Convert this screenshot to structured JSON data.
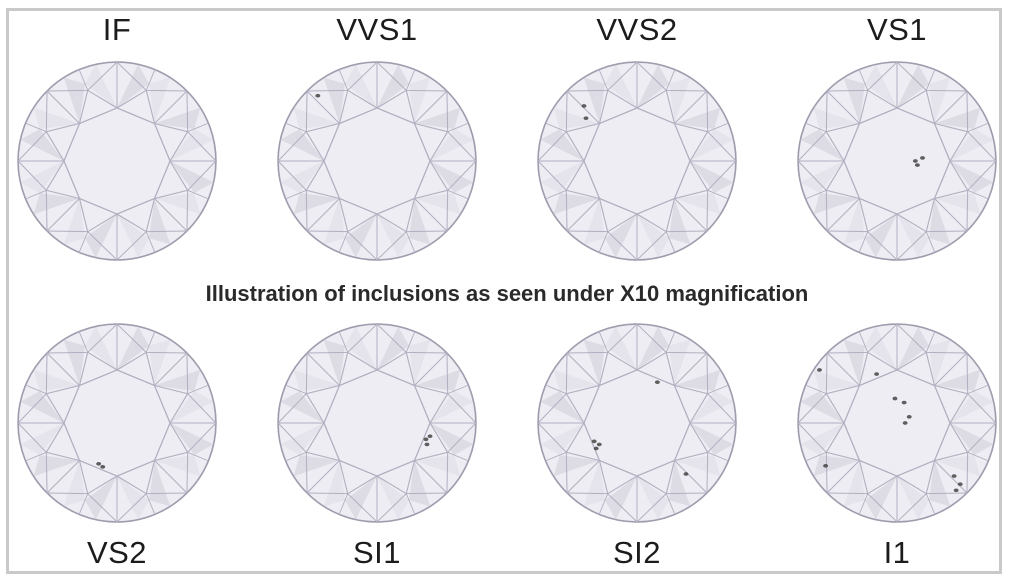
{
  "caption": "Illustration of inclusions as seen under X10 magnification",
  "colors": {
    "diamond_face": "#eeedf3",
    "diamond_outline": "#9f9cad",
    "facet_line": "#b2afc0",
    "shadow_facet": "#cfcdd9",
    "inclusion": "#3a3a3a",
    "frame": "#c9c9c9"
  },
  "grades": [
    {
      "label": "IF",
      "inclusion_count": 0
    },
    {
      "label": "VVS1",
      "inclusion_count": 1
    },
    {
      "label": "VVS2",
      "inclusion_count": 2
    },
    {
      "label": "VS1",
      "inclusion_count": 3
    },
    {
      "label": "VS2",
      "inclusion_count": 2
    },
    {
      "label": "SI1",
      "inclusion_count": 3
    },
    {
      "label": "SI2",
      "inclusion_count": 5
    },
    {
      "label": "I1",
      "inclusion_count": 10
    }
  ]
}
